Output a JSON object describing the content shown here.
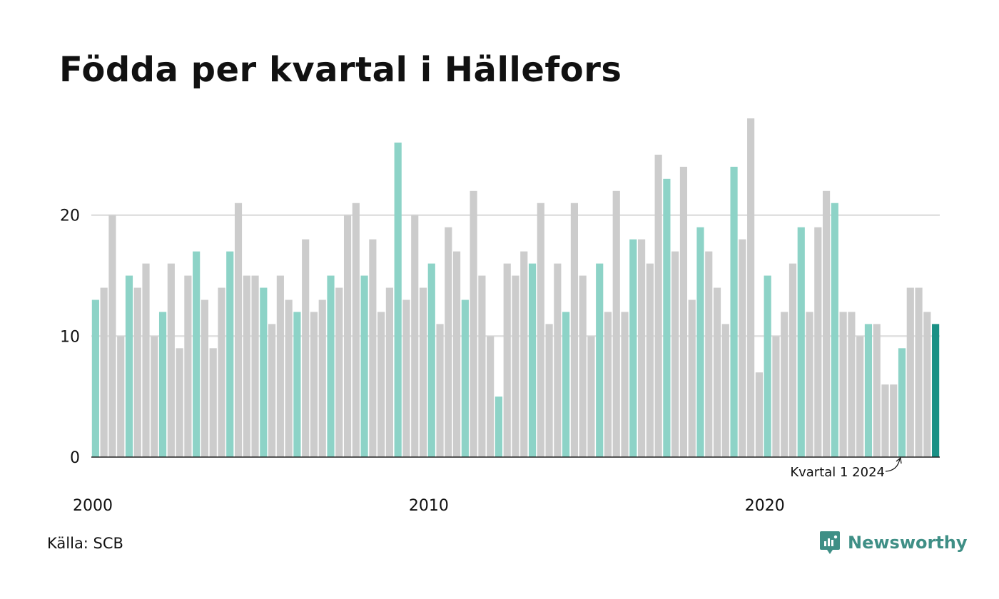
{
  "title": "Födda per kvartal i Hällefors",
  "source": "Källa: SCB",
  "brand": "Newsworthy",
  "colors": {
    "q1": "#8dd3c7",
    "other": "#cccccc",
    "latest": "#1a9085",
    "grid": "#e0e0e0",
    "baseline": "#222222"
  },
  "chart_data": {
    "type": "bar",
    "start": {
      "year": 2000,
      "quarter": 1
    },
    "values": [
      13,
      14,
      20,
      10,
      15,
      14,
      16,
      10,
      12,
      16,
      9,
      15,
      17,
      13,
      9,
      14,
      17,
      21,
      15,
      15,
      14,
      11,
      15,
      13,
      12,
      18,
      12,
      13,
      15,
      14,
      20,
      21,
      15,
      18,
      12,
      14,
      26,
      13,
      20,
      14,
      16,
      11,
      19,
      17,
      13,
      22,
      15,
      10,
      5,
      16,
      15,
      17,
      16,
      21,
      11,
      16,
      12,
      21,
      15,
      10,
      16,
      12,
      22,
      12,
      18,
      18,
      16,
      25,
      23,
      17,
      24,
      13,
      19,
      17,
      14,
      11,
      24,
      18,
      28,
      7,
      15,
      10,
      12,
      16,
      19,
      12,
      19,
      22,
      21,
      12,
      12,
      10,
      11,
      11,
      6,
      6,
      9,
      14,
      14,
      12,
      11
    ],
    "ylim": [
      0,
      28
    ],
    "yticks": [
      0,
      10,
      20
    ],
    "xticks": [
      "2000",
      "2010",
      "2020"
    ],
    "annotation": "Kvartal 1 2024",
    "grid": true,
    "legend": "none"
  }
}
